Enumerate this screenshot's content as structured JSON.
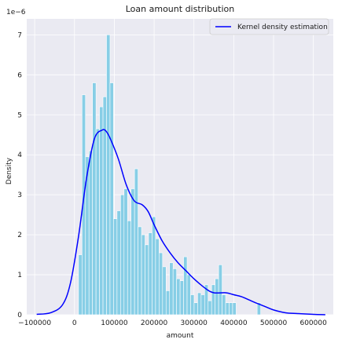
{
  "chart_data": {
    "type": "bar",
    "title": "Loan amount distribution",
    "xlabel": "amount",
    "ylabel": "Density",
    "y_scale_label": "1e−6",
    "xlim": [
      -120000,
      650000
    ],
    "ylim": [
      0,
      7.4
    ],
    "grid": true,
    "legend_position": "top-right",
    "colors": {
      "background": "#eaeaf2",
      "grid": "#ffffff",
      "bars": "#87cee6",
      "bar_edge": "#ffffff",
      "kde": "#0000ff"
    },
    "x_ticks": [
      {
        "value": -100000,
        "label": "−100000"
      },
      {
        "value": 0,
        "label": "0"
      },
      {
        "value": 100000,
        "label": "100000"
      },
      {
        "value": 200000,
        "label": "200000"
      },
      {
        "value": 300000,
        "label": "300000"
      },
      {
        "value": 400000,
        "label": "400000"
      },
      {
        "value": 500000,
        "label": "500000"
      },
      {
        "value": 600000,
        "label": "600000"
      }
    ],
    "y_ticks": [
      {
        "value": 0,
        "label": "0"
      },
      {
        "value": 1,
        "label": "1"
      },
      {
        "value": 2,
        "label": "2"
      },
      {
        "value": 3,
        "label": "3"
      },
      {
        "value": 4,
        "label": "4"
      },
      {
        "value": 5,
        "label": "5"
      },
      {
        "value": 6,
        "label": "6"
      },
      {
        "value": 7,
        "label": "7"
      }
    ],
    "histogram": {
      "bin_start": 10000,
      "bin_width": 8800,
      "values": [
        1.5,
        5.5,
        3.95,
        4.1,
        5.8,
        4.65,
        5.2,
        5.45,
        7.0,
        5.8,
        2.4,
        2.6,
        3.0,
        3.15,
        2.35,
        3.15,
        3.65,
        2.2,
        2.0,
        1.75,
        2.05,
        2.45,
        1.9,
        1.55,
        1.2,
        0.6,
        1.3,
        1.15,
        0.9,
        0.85,
        1.45,
        1.0,
        0.5,
        0.3,
        0.55,
        0.5,
        0.75,
        0.35,
        0.75,
        0.9,
        1.25,
        0.5,
        0.3,
        0.3,
        0.3,
        0.0,
        0.0,
        0.0,
        0.0,
        0.0,
        0.0,
        0.3
      ]
    },
    "series": [
      {
        "name": "Kernel density estimation",
        "x": [
          -95000,
          -60000,
          -30000,
          -10000,
          10000,
          30000,
          50000,
          70000,
          80000,
          90000,
          110000,
          130000,
          150000,
          170000,
          185000,
          200000,
          220000,
          240000,
          260000,
          280000,
          300000,
          330000,
          350000,
          380000,
          400000,
          420000,
          450000,
          480000,
          500000,
          530000,
          560000,
          600000,
          630000
        ],
        "y": [
          0.01,
          0.05,
          0.25,
          0.8,
          1.95,
          3.4,
          4.4,
          4.62,
          4.58,
          4.4,
          3.9,
          3.25,
          2.85,
          2.75,
          2.58,
          2.25,
          1.85,
          1.55,
          1.3,
          1.1,
          0.9,
          0.65,
          0.55,
          0.55,
          0.5,
          0.45,
          0.32,
          0.2,
          0.12,
          0.05,
          0.03,
          0.01,
          0.0
        ]
      }
    ]
  }
}
